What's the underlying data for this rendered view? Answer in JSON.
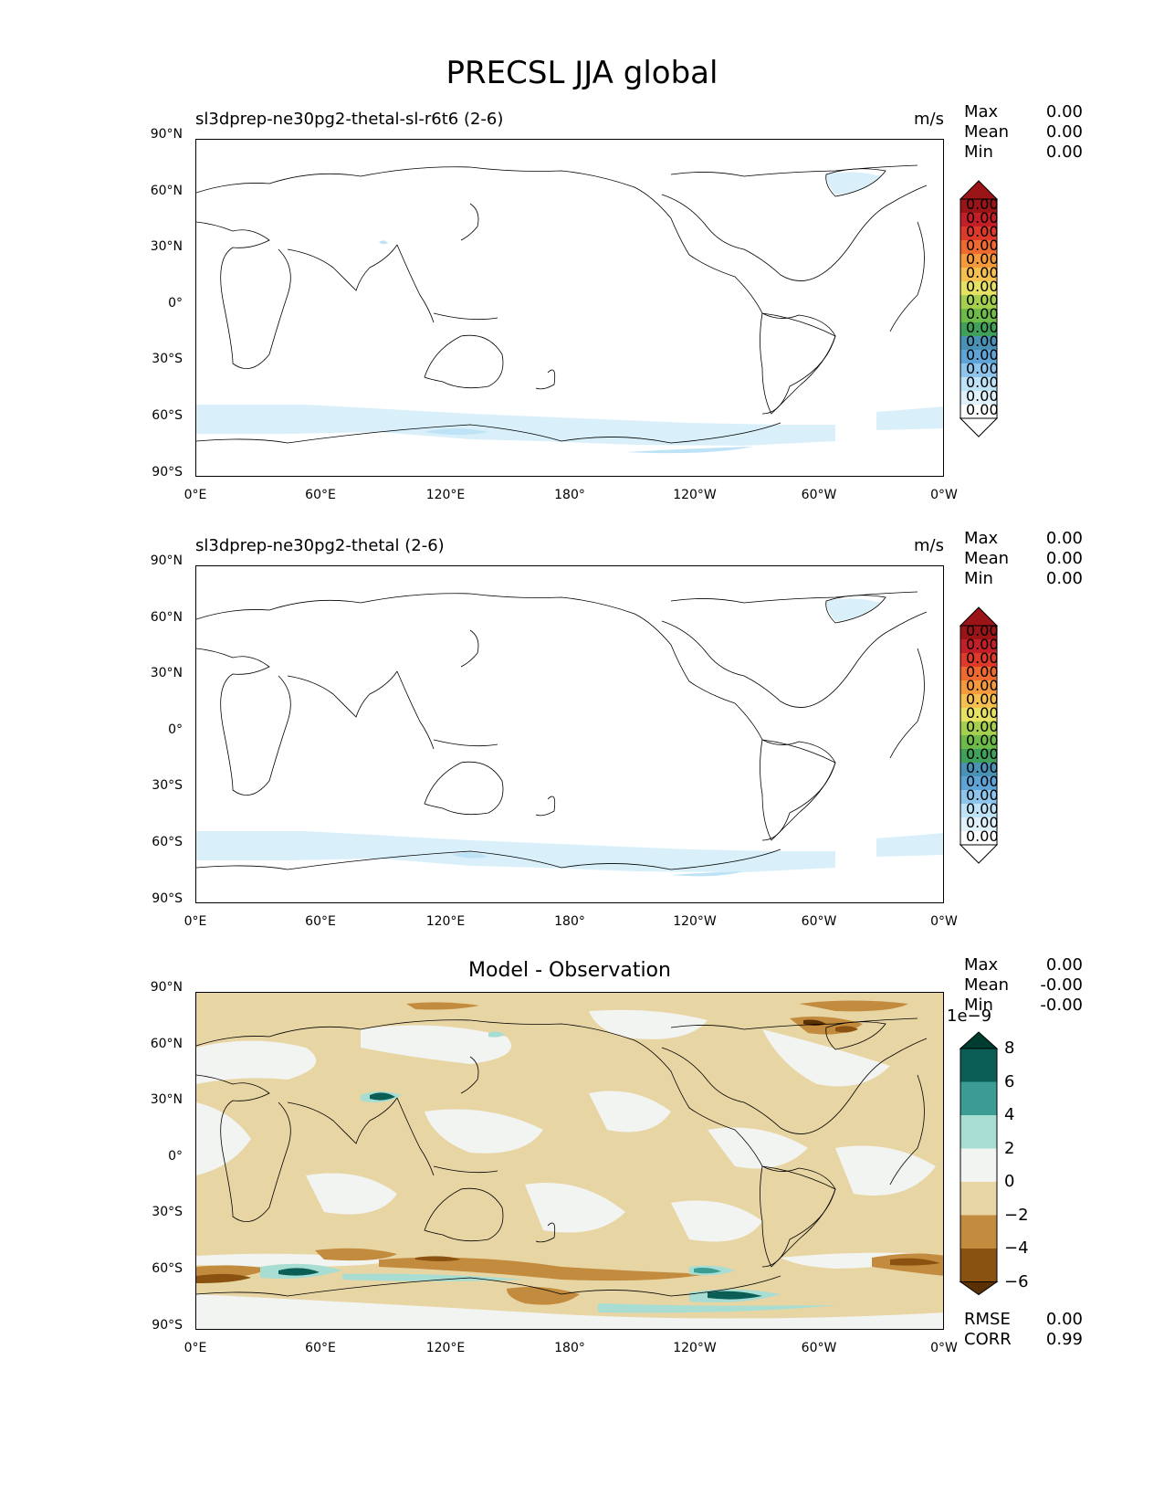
{
  "figure_title": "PRECSL JJA global",
  "panels": [
    {
      "title": "sl3dprep-ne30pg2-thetal-sl-r6t6 (2-6)",
      "units": "m/s",
      "stats": [
        {
          "label": "Max",
          "value": "0.00"
        },
        {
          "label": "Mean",
          "value": "0.00"
        },
        {
          "label": "Min",
          "value": "0.00"
        }
      ],
      "colorbar_labels": [
        "0.00",
        "0.00",
        "0.00",
        "0.00",
        "0.00",
        "0.00",
        "0.00",
        "0.00",
        "0.00",
        "0.00",
        "0.00",
        "0.00",
        "0.00",
        "0.00",
        "0.00",
        "0.00"
      ]
    },
    {
      "title": "sl3dprep-ne30pg2-thetal (2-6)",
      "units": "m/s",
      "stats": [
        {
          "label": "Max",
          "value": "0.00"
        },
        {
          "label": "Mean",
          "value": "0.00"
        },
        {
          "label": "Min",
          "value": "0.00"
        }
      ],
      "colorbar_labels": [
        "0.00",
        "0.00",
        "0.00",
        "0.00",
        "0.00",
        "0.00",
        "0.00",
        "0.00",
        "0.00",
        "0.00",
        "0.00",
        "0.00",
        "0.00",
        "0.00",
        "0.00",
        "0.00"
      ]
    },
    {
      "title": "Model - Observation",
      "stats": [
        {
          "label": "Max",
          "value": "0.00"
        },
        {
          "label": "Mean",
          "value": "-0.00"
        },
        {
          "label": "Min",
          "value": "-0.00"
        }
      ],
      "colorbar_offset": "1e−9",
      "colorbar_labels": [
        "8",
        "6",
        "4",
        "2",
        "0",
        "−2",
        "−4",
        "−6"
      ],
      "metrics": [
        {
          "label": "RMSE",
          "value": "0.00"
        },
        {
          "label": "CORR",
          "value": "0.99"
        }
      ]
    }
  ],
  "lat_ticks": [
    "90°N",
    "60°N",
    "30°N",
    "0°",
    "30°S",
    "60°S",
    "90°S"
  ],
  "lon_ticks": [
    "0°E",
    "60°E",
    "120°E",
    "180°",
    "120°W",
    "60°W",
    "0°W"
  ],
  "colors": {
    "precip_scale": [
      "#ffffff",
      "#dff1fb",
      "#bfe3f6",
      "#8fc5ea",
      "#5fa4d6",
      "#4992b5",
      "#3fa05a",
      "#6fbb49",
      "#a4cf4f",
      "#e4e163",
      "#f5c04f",
      "#f59a3c",
      "#ee6a2e",
      "#de3a2a",
      "#c31f26",
      "#9a1418"
    ],
    "diff_scale": [
      "#5a3005",
      "#8a5210",
      "#c38b3e",
      "#e8d5a4",
      "#f2f4f2",
      "#a8ddd3",
      "#3a9c92",
      "#0b5e55",
      "#003c30"
    ],
    "light_blue_band": "#d9f0fa",
    "medium_blue_patch": "#bfe3f6"
  },
  "chart_data": [
    {
      "type": "heatmap",
      "title": "sl3dprep-ne30pg2-thetal-sl-r6t6 (2-6)",
      "units": "m/s",
      "x_range": [
        "0°E",
        "0°W"
      ],
      "y_range": [
        "90°S",
        "90°N"
      ],
      "stats": {
        "max": 0.0,
        "mean": 0.0,
        "min": 0.0
      }
    },
    {
      "type": "heatmap",
      "title": "sl3dprep-ne30pg2-thetal (2-6)",
      "units": "m/s",
      "x_range": [
        "0°E",
        "0°W"
      ],
      "y_range": [
        "90°S",
        "90°N"
      ],
      "stats": {
        "max": 0.0,
        "mean": 0.0,
        "min": 0.0
      }
    },
    {
      "type": "heatmap",
      "title": "Model - Observation",
      "x_range": [
        "0°E",
        "0°W"
      ],
      "y_range": [
        "90°S",
        "90°N"
      ],
      "colorbar_levels": [
        -6,
        -4,
        -2,
        0,
        2,
        4,
        6,
        8
      ],
      "colorbar_scale": "1e-9",
      "stats": {
        "max": 0.0,
        "mean": -0.0,
        "min": -0.0,
        "rmse": 0.0,
        "corr": 0.99
      }
    }
  ]
}
